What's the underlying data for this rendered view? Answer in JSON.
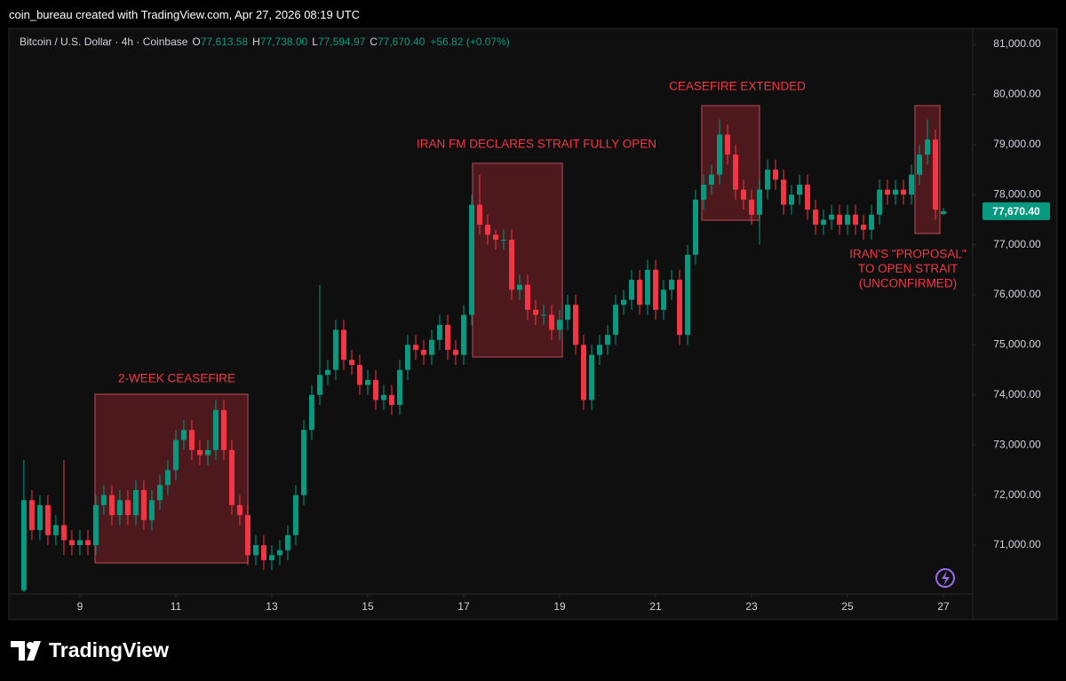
{
  "header": {
    "title": "coin_bureau created with TradingView.com, Apr 27, 2026 08:19 UTC"
  },
  "footer": {
    "brand": "TradingView"
  },
  "chart_data": {
    "type": "candlestick",
    "symbol": "Bitcoin / U.S. Dollar · 4h · Coinbase",
    "legend_values": [
      {
        "key": "O",
        "value": "77,613.58"
      },
      {
        "key": "H",
        "value": "77,738.00"
      },
      {
        "key": "L",
        "value": "77,594.97"
      },
      {
        "key": "C",
        "value": "77,670.40"
      }
    ],
    "change": "+56.82 (+0.07%)",
    "last_price_label": "77,670.40",
    "up_color": "#089981",
    "down_color": "#f23645",
    "grid": false,
    "xlim": [
      7.52,
      27.61
    ],
    "xticks": [
      9,
      11,
      13,
      15,
      17,
      19,
      21,
      23,
      25,
      27
    ],
    "ylim": [
      70025,
      81320
    ],
    "yticks": [
      {
        "value": 71000,
        "label": "71,000.00"
      },
      {
        "value": 72000,
        "label": "72,000.00"
      },
      {
        "value": 73000,
        "label": "73,000.00"
      },
      {
        "value": 74000,
        "label": "74,000.00"
      },
      {
        "value": 75000,
        "label": "75,000.00"
      },
      {
        "value": 76000,
        "label": "76,000.00"
      },
      {
        "value": 77000,
        "label": "77,000.00"
      },
      {
        "value": 78000,
        "label": "78,000.00"
      },
      {
        "value": 79000,
        "label": "79,000.00"
      },
      {
        "value": 80000,
        "label": "80,000.00"
      },
      {
        "value": 81000,
        "label": "81,000.00"
      }
    ],
    "annotations": [
      {
        "lines": [
          "2-WEEK CEASEFIRE"
        ]
      },
      {
        "lines": [
          "IRAN FM DECLARES STRAIT FULLY OPEN"
        ]
      },
      {
        "lines": [
          "CEASEFIRE EXTENDED"
        ]
      },
      {
        "lines": [
          "IRAN'S \"PROPOSAL\"",
          "TO OPEN STRAIT",
          "(UNCONFIRMED)"
        ]
      }
    ],
    "x": [
      7.833,
      8,
      8.167,
      8.333,
      8.5,
      8.667,
      8.833,
      9,
      9.167,
      9.333,
      9.5,
      9.667,
      9.833,
      10,
      10.167,
      10.333,
      10.5,
      10.667,
      10.833,
      11,
      11.167,
      11.333,
      11.5,
      11.667,
      11.833,
      12,
      12.167,
      12.333,
      12.5,
      12.667,
      12.833,
      13,
      13.167,
      13.333,
      13.5,
      13.667,
      13.833,
      14,
      14.167,
      14.333,
      14.5,
      14.667,
      14.833,
      15,
      15.167,
      15.333,
      15.5,
      15.667,
      15.833,
      16,
      16.167,
      16.333,
      16.5,
      16.667,
      16.833,
      17,
      17.167,
      17.333,
      17.5,
      17.667,
      17.833,
      18,
      18.167,
      18.333,
      18.5,
      18.667,
      18.833,
      19,
      19.167,
      19.333,
      19.5,
      19.667,
      19.833,
      20,
      20.167,
      20.333,
      20.5,
      20.667,
      20.833,
      21,
      21.167,
      21.333,
      21.5,
      21.667,
      21.833,
      22,
      22.167,
      22.333,
      22.5,
      22.667,
      22.833,
      23,
      23.167,
      23.333,
      23.5,
      23.667,
      23.833,
      24,
      24.167,
      24.333,
      24.5,
      24.667,
      24.833,
      25,
      25.167,
      25.333,
      25.5,
      25.667,
      25.833,
      26,
      26.167,
      26.333,
      26.5,
      26.667,
      26.833,
      27
    ],
    "open": [
      70100,
      71900,
      71300,
      71800,
      71200,
      71400,
      71100,
      71000,
      71100,
      71000,
      71800,
      72000,
      71600,
      71900,
      71600,
      72100,
      71500,
      71900,
      72200,
      72500,
      73100,
      73300,
      72900,
      72800,
      72900,
      73700,
      72900,
      71800,
      71600,
      70800,
      71000,
      70700,
      70800,
      70900,
      71200,
      72000,
      73300,
      74000,
      74400,
      74500,
      75300,
      74700,
      74600,
      74200,
      74300,
      73900,
      74000,
      73800,
      74500,
      75000,
      74900,
      74800,
      75100,
      75400,
      74900,
      74800,
      75600,
      77800,
      77400,
      77200,
      77100,
      77100,
      76100,
      76200,
      75700,
      75600,
      75600,
      75300,
      75500,
      75800,
      75000,
      73900,
      74800,
      75000,
      75200,
      75800,
      75900,
      76300,
      75800,
      76500,
      75700,
      76100,
      76300,
      75200,
      76800,
      77900,
      78200,
      78400,
      79200,
      78800,
      78100,
      77900,
      77600,
      78100,
      78500,
      78300,
      77800,
      78000,
      78200,
      77700,
      77400,
      77500,
      77600,
      77400,
      77600,
      77400,
      77300,
      77600,
      78100,
      78000,
      78100,
      78000,
      78400,
      78800,
      79100,
      77613.58
    ],
    "high": [
      72700,
      72100,
      72000,
      72000,
      71600,
      72700,
      71300,
      71300,
      71300,
      72000,
      72200,
      72200,
      72100,
      72100,
      72300,
      72300,
      72100,
      72400,
      72700,
      73300,
      73500,
      73500,
      73100,
      73100,
      73900,
      73900,
      73100,
      72000,
      71800,
      71200,
      71200,
      71000,
      71100,
      71400,
      72200,
      73500,
      74200,
      76200,
      74700,
      75500,
      75500,
      74900,
      74800,
      74500,
      74500,
      74200,
      74200,
      74700,
      75200,
      75200,
      75100,
      75300,
      75600,
      75600,
      75100,
      75800,
      78000,
      78400,
      77600,
      77300,
      77300,
      77300,
      76400,
      76400,
      75900,
      75800,
      75800,
      75700,
      76000,
      76000,
      75200,
      75000,
      75200,
      75400,
      76000,
      76100,
      76500,
      76500,
      76700,
      76700,
      76300,
      76500,
      76500,
      77000,
      78100,
      78400,
      78600,
      79500,
      79400,
      79000,
      78300,
      78100,
      78300,
      78700,
      78700,
      78500,
      78200,
      78400,
      78400,
      77900,
      77700,
      77800,
      77800,
      77800,
      77800,
      77600,
      77800,
      78300,
      78300,
      78300,
      78300,
      78600,
      79000,
      79500,
      79300,
      77738
    ],
    "low": [
      70060,
      71100,
      71100,
      71000,
      71000,
      70800,
      70800,
      70800,
      70800,
      70800,
      71600,
      71400,
      71400,
      71400,
      71400,
      71300,
      71300,
      71700,
      72000,
      72300,
      72900,
      72700,
      72600,
      72600,
      72700,
      72700,
      71600,
      71400,
      70600,
      70600,
      70500,
      70500,
      70600,
      70700,
      71000,
      71800,
      73100,
      73800,
      74200,
      74300,
      74500,
      74400,
      74000,
      74000,
      73700,
      73700,
      73600,
      73600,
      74300,
      74700,
      74600,
      74600,
      74900,
      74700,
      74600,
      74600,
      75400,
      77200,
      77000,
      76900,
      76900,
      75900,
      75900,
      75500,
      75400,
      75400,
      75100,
      75100,
      75300,
      74800,
      73700,
      73700,
      74600,
      74800,
      75000,
      75600,
      75700,
      75600,
      75600,
      75500,
      75500,
      75900,
      75000,
      75000,
      76600,
      77700,
      78000,
      78200,
      78600,
      77900,
      77700,
      77400,
      77000,
      77900,
      78100,
      77600,
      77600,
      77800,
      77500,
      77200,
      77200,
      77300,
      77200,
      77200,
      77200,
      77100,
      77100,
      77400,
      77800,
      77800,
      77800,
      77800,
      78200,
      78600,
      77500,
      77594.97
    ],
    "close": [
      71900,
      71300,
      71800,
      71200,
      71400,
      71100,
      71000,
      71100,
      71000,
      71800,
      72000,
      71600,
      71900,
      71600,
      72100,
      71500,
      71900,
      72200,
      72500,
      73100,
      73300,
      72900,
      72800,
      72900,
      73700,
      72900,
      71800,
      71600,
      70800,
      71000,
      70700,
      70800,
      70900,
      71200,
      72000,
      73300,
      74000,
      74400,
      74500,
      75300,
      74700,
      74600,
      74200,
      74300,
      73900,
      74000,
      73800,
      74500,
      75000,
      74900,
      74800,
      75100,
      75400,
      74900,
      74800,
      75600,
      77800,
      77400,
      77200,
      77100,
      77100,
      76100,
      76200,
      75700,
      75600,
      75600,
      75300,
      75500,
      75800,
      75000,
      73900,
      74800,
      75000,
      75200,
      75800,
      75900,
      76300,
      75800,
      76500,
      75700,
      76100,
      76300,
      75200,
      76800,
      77900,
      78200,
      78400,
      79200,
      78800,
      78100,
      77900,
      77600,
      78100,
      78500,
      78300,
      77800,
      78000,
      78200,
      77700,
      77400,
      77500,
      77600,
      77400,
      77600,
      77400,
      77300,
      77600,
      78100,
      78000,
      78100,
      78000,
      78400,
      78800,
      79100,
      77700,
      77670.4
    ]
  }
}
